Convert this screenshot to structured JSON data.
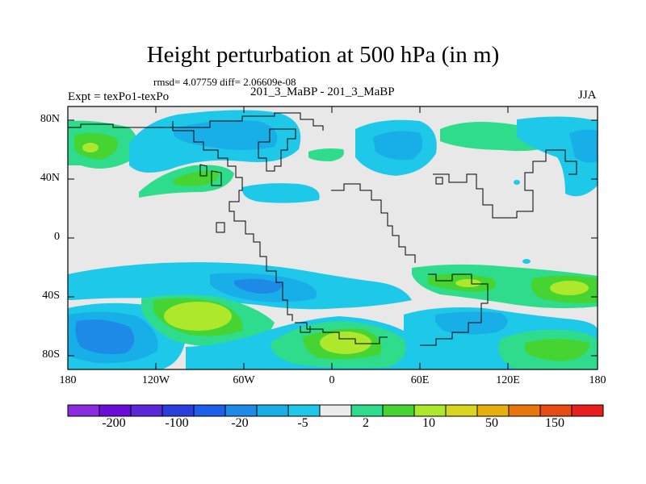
{
  "title": "Height perturbation at 500 hPa (in m)",
  "stats": "rmsd= 4.07759 diff= 2.06609e-08",
  "expt_label": "Expt = texPo1-texPo",
  "runs_label": "201_3_MaBP - 201_3_MaBP",
  "season": "JJA",
  "y_axis_labels": [
    "80N",
    "40N",
    "0",
    "40S",
    "80S"
  ],
  "x_axis_labels": [
    "180",
    "120W",
    "60W",
    "0",
    "60E",
    "120E",
    "180"
  ],
  "colorbar": {
    "colors": [
      "#8a2be2",
      "#6a0dd8",
      "#5a28d8",
      "#2a3ee0",
      "#1e5ee8",
      "#1e8ae8",
      "#18aee8",
      "#1ec8e8",
      "#ececec",
      "#2edc8c",
      "#46d432",
      "#aee82c",
      "#d8d61e",
      "#e8b00c",
      "#e8780c",
      "#e84a10",
      "#e81e1e"
    ],
    "labels": [
      "-200",
      "-100",
      "-20",
      "-5",
      "2",
      "10",
      "50",
      "150"
    ]
  },
  "colors": {
    "background_field": "#e8e8e8",
    "light_blue": "#1ec8e8",
    "mid_blue": "#18aee8",
    "blue": "#1e8ae8",
    "dark_blue": "#1e5ee8",
    "green": "#2edc8c",
    "bright_green": "#46d432",
    "yellow_green": "#aee82c"
  }
}
